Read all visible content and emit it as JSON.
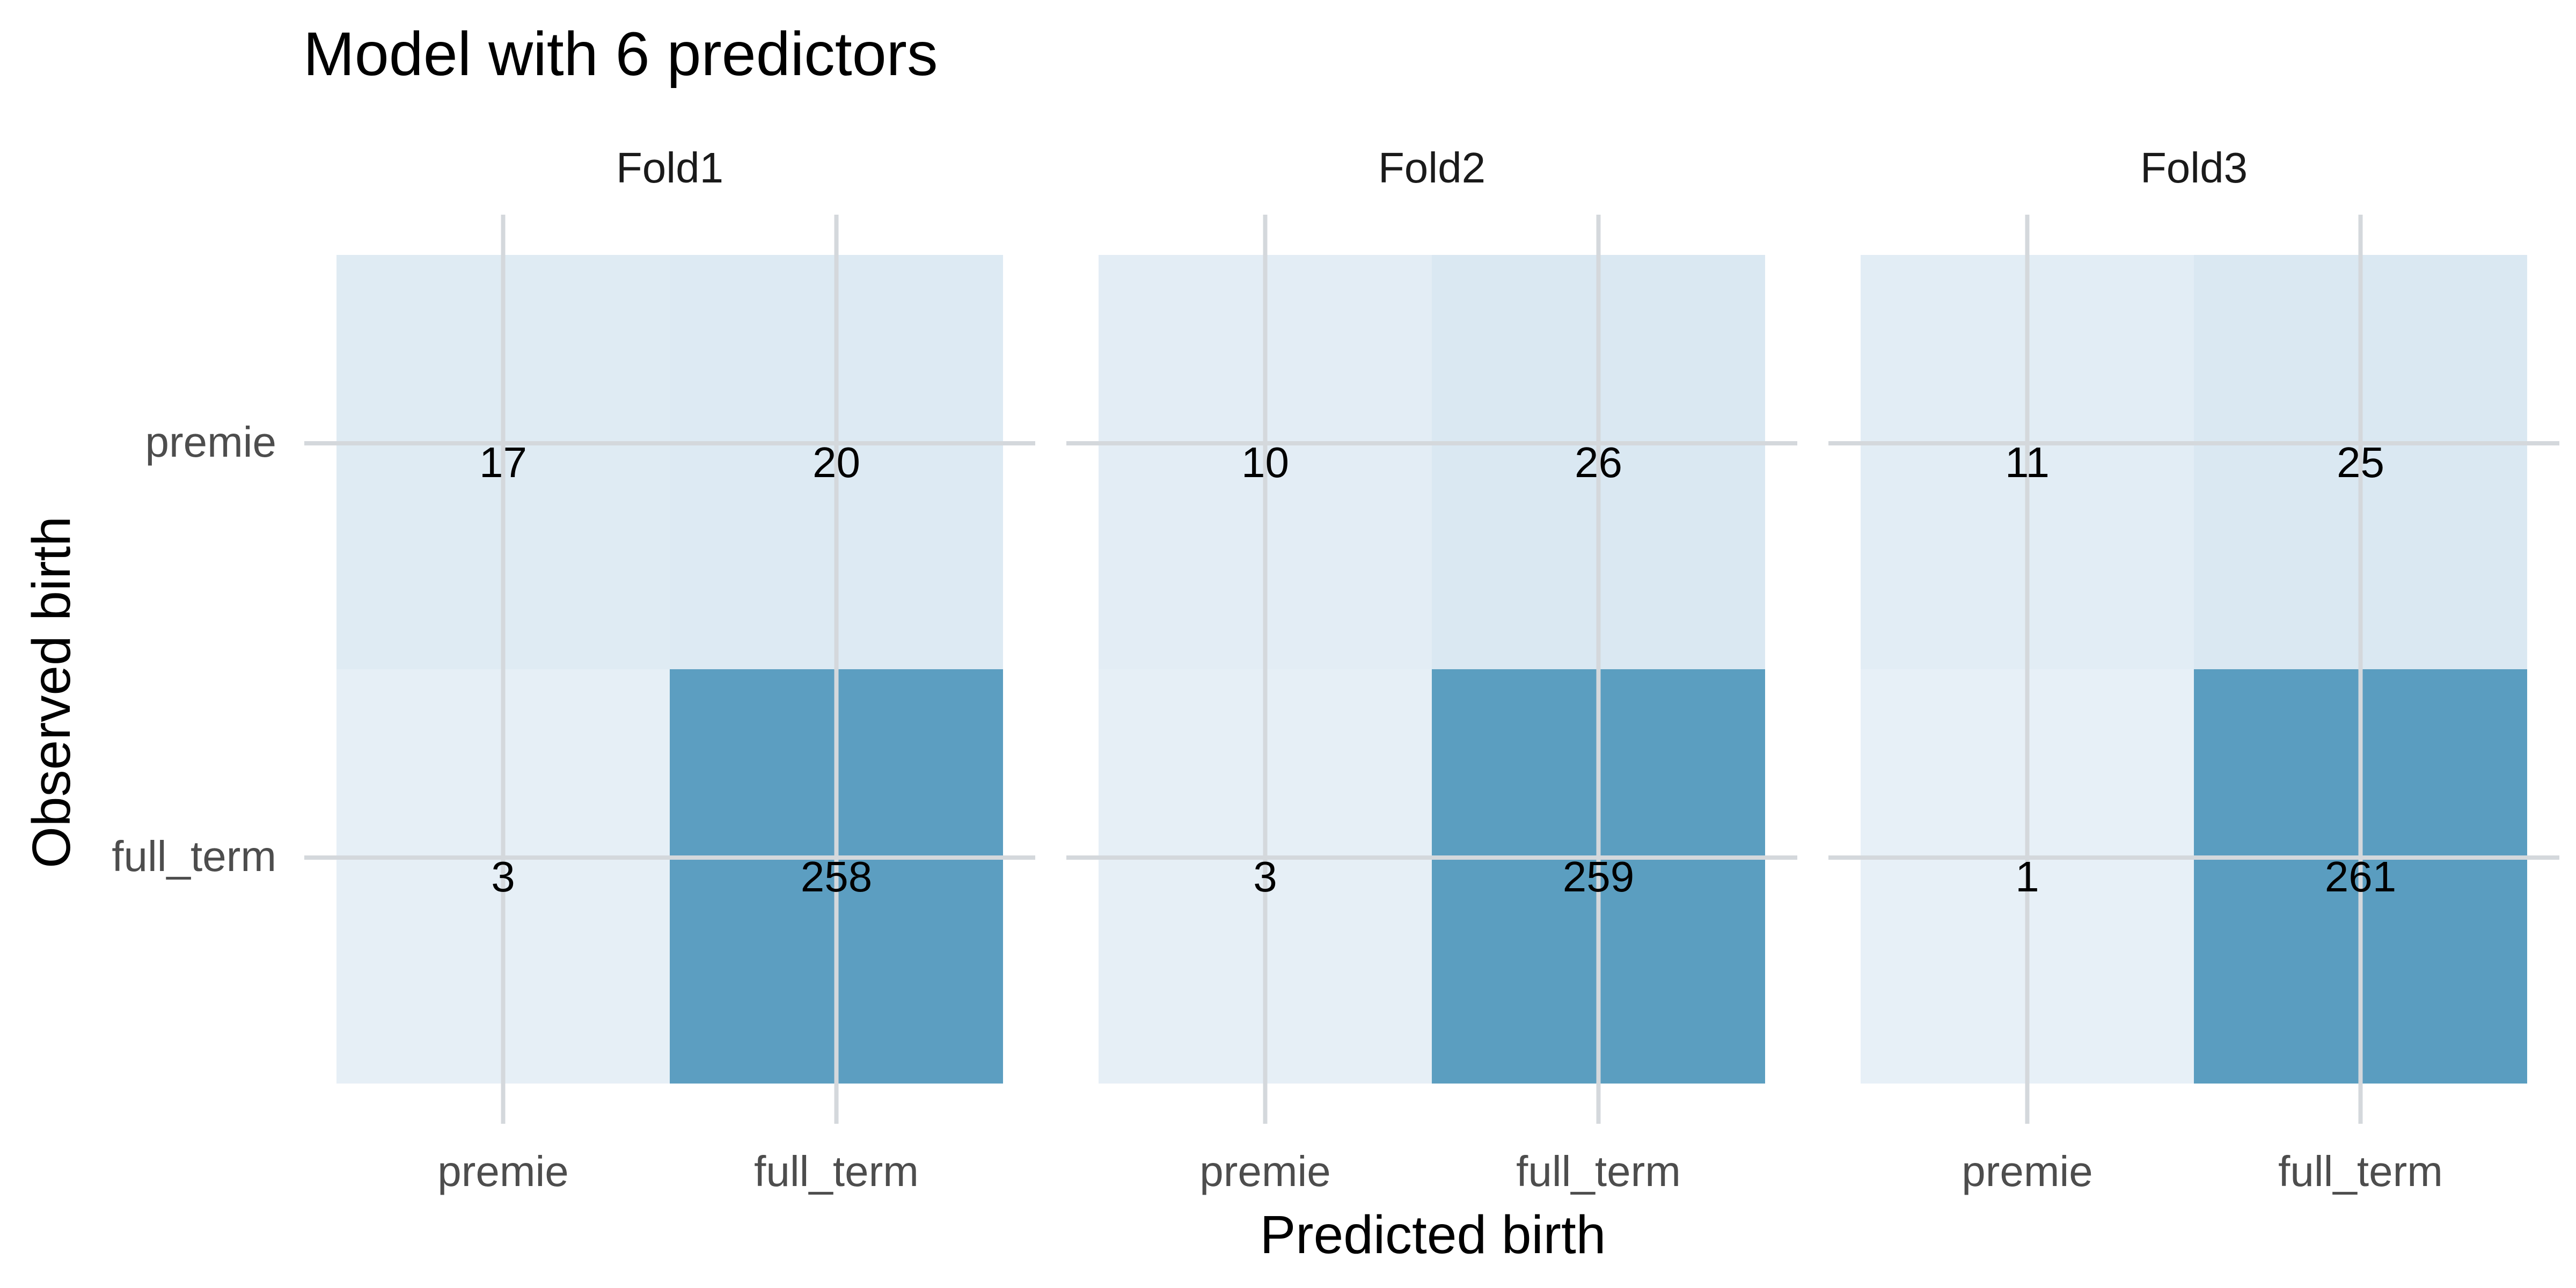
{
  "chart_data": {
    "type": "heatmap",
    "title": "Model with 6 predictors",
    "xlabel": "Predicted birth",
    "ylabel": "Observed birth",
    "x_categories": [
      "premie",
      "full_term"
    ],
    "y_categories": [
      "premie",
      "full_term"
    ],
    "panels": [
      {
        "name": "Fold1",
        "cells": [
          {
            "observed": "premie",
            "predicted": "premie",
            "count": 17
          },
          {
            "observed": "premie",
            "predicted": "full_term",
            "count": 20
          },
          {
            "observed": "full_term",
            "predicted": "premie",
            "count": 3
          },
          {
            "observed": "full_term",
            "predicted": "full_term",
            "count": 258
          }
        ]
      },
      {
        "name": "Fold2",
        "cells": [
          {
            "observed": "premie",
            "predicted": "premie",
            "count": 10
          },
          {
            "observed": "premie",
            "predicted": "full_term",
            "count": 26
          },
          {
            "observed": "full_term",
            "predicted": "premie",
            "count": 3
          },
          {
            "observed": "full_term",
            "predicted": "full_term",
            "count": 259
          }
        ]
      },
      {
        "name": "Fold3",
        "cells": [
          {
            "observed": "premie",
            "predicted": "premie",
            "count": 11
          },
          {
            "observed": "premie",
            "predicted": "full_term",
            "count": 25
          },
          {
            "observed": "full_term",
            "predicted": "premie",
            "count": 1
          },
          {
            "observed": "full_term",
            "predicted": "full_term",
            "count": 261
          }
        ]
      }
    ],
    "color_low": "#e8f0f7",
    "color_high": "#5a9dc0",
    "grid": true,
    "legend": "none"
  }
}
